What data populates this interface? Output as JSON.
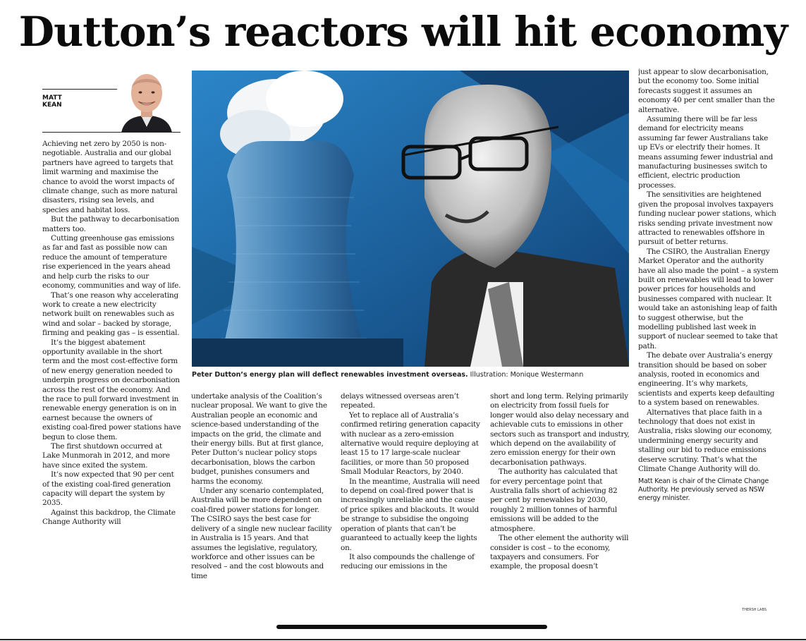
{
  "headline": "Dutton’s reactors will hit economy",
  "byline": {
    "first": "MATT",
    "last": "KEAN"
  },
  "icons": {
    "author_photo": "author-headshot",
    "main_illustration": "peter-dutton-with-cooling-tower-illustration"
  },
  "colors": {
    "photo_blue": "#1f6aa6",
    "text": "#1a1a1a"
  },
  "photo": {
    "caption": "Peter Dutton’s energy plan will deflect renewables investment overseas.",
    "credit": "Illustration: Monique Westermann"
  },
  "columns": {
    "col1": [
      "Achieving net zero by 2050 is non-negotiable. Australia and our global partners have agreed to targets that limit warming and maximise the chance to avoid the worst impacts of climate change, such as more natural disasters, rising sea levels, and species and habitat loss.",
      "But the pathway to decarbonisation matters too.",
      "Cutting greenhouse gas emissions as far and fast as possible now can reduce the amount of temperature rise experienced in the years ahead and help curb the risks to our economy, communities and way of life.",
      "That’s one reason why accelerating work to create a new electricity network built on renewables such as wind and solar – backed by storage, firming and peaking gas – is essential.",
      "It’s the biggest abatement opportunity available in the short term and the most cost-effective form of new energy generation needed to underpin progress on decarbonisation across the rest of the economy. And the race to pull forward investment in renewable energy generation is on in earnest because the owners of existing coal-fired power stations have begun to close them.",
      "The first shutdown occurred at Lake Munmorah in 2012, and more have since exited the system.",
      "It’s now expected that 90 per cent of the existing coal-fired generation capacity will depart the system by 2035.",
      "Against this backdrop, the Climate Change Authority will"
    ],
    "col2": [
      "undertake analysis of the Coalition’s nuclear proposal. We want to give the Australian people an economic and science-based understanding of the impacts on the grid, the climate and their energy bills. But at first glance, Peter Dutton’s nuclear policy stops decarbonisation, blows the carbon budget, punishes consumers and harms the economy.",
      "Under any scenario contemplated, Australia will be more dependent on coal-fired power stations for longer. The CSIRO says the best case for delivery of a single new nuclear facility in Australia is 15 years. And that assumes the legislative, regulatory, workforce and other issues can be resolved – and the cost blowouts and time"
    ],
    "col3": [
      "delays witnessed overseas aren’t repeated.",
      "Yet to replace all of Australia’s confirmed retiring generation capacity with nuclear as a zero-emission alternative would require deploying at least 15 to 17 large-scale nuclear facilities, or more than 50 proposed Small Modular Reactors, by 2040.",
      "In the meantime, Australia will need to depend on coal-fired power that is increasingly unreliable and the cause of price spikes and blackouts. It would be strange to subsidise the ongoing operation of plants that can’t be guaranteed to actually keep the lights on.",
      "It also compounds the challenge of reducing our emissions in the"
    ],
    "col4": [
      "short and long term. Relying primarily on electricity from fossil fuels for longer would also delay necessary and achievable cuts to emissions in other sectors such as transport and industry, which depend on the availability of zero emission energy for their own decarbonisation pathways.",
      "The authority has calculated that for every percentage point that Australia falls short of achieving 82 per cent by renewables by 2030, roughly 2 million tonnes of harmful emissions will be added to the atmosphere.",
      "The other element the authority will consider is cost – to the economy, taxpayers and consumers. For example, the proposal doesn’t"
    ],
    "col5": [
      "just appear to slow decarbonisation, but the economy too. Some initial forecasts suggest it assumes an economy 40 per cent smaller than the alternative.",
      "Assuming there will be far less demand for electricity means assuming far fewer Australians take up EVs or electrify their homes. It means assuming fewer industrial and manufacturing businesses switch to efficient, electric production processes.",
      "The sensitivities are heightened given the proposal involves taxpayers funding nuclear power stations, which risks sending private investment now attracted to renewables offshore in pursuit of better returns.",
      "The CSIRO, the Australian Energy Market Operator and the authority have all also made the point – a system built on renewables will lead to lower power prices for households and businesses compared with nuclear. It would take an astonishing leap of faith to suggest otherwise, but the modelling published last week in support of nuclear seemed to take that path.",
      "The debate over Australia’s energy transition should be based on sober analysis, rooted in economics and engineering. It’s why markets, scientists and experts keep defaulting to a system based on renewables.",
      "Alternatives that place faith in a technology that does not exist in Australia, risks slowing our economy, undermining energy security and stalling our bid to reduce emissions deserve scrutiny. That’s what the Climate Change Authority will do."
    ],
    "bio": "Matt Kean is chair of the Climate Change Authority. He previously served as NSW energy minister.",
    "tag": "THERSH LABS"
  }
}
